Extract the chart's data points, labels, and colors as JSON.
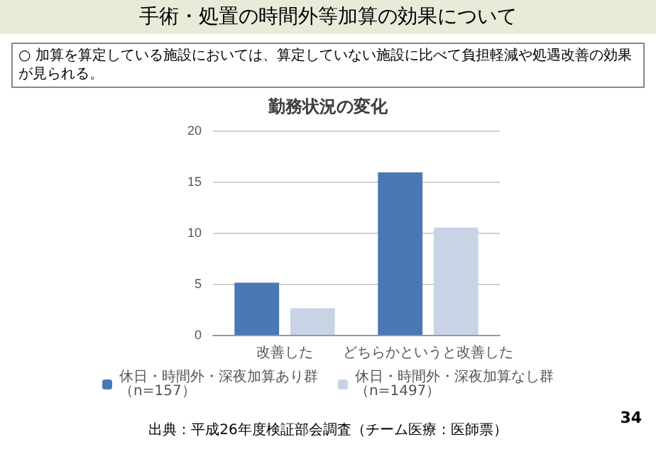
{
  "chart_data": {
    "type": "bar",
    "title": "勤務状況の変化",
    "subtitle": "○ 加算を算定している施設においては、算定していない施設に比べて負担軽減や処遇改善の効果が見られる。",
    "annotations": [
      "手術・処置の時間外等加算の効果について",
      "出典：平成26年度検証部会調査（チーム医療：医師票）",
      "34"
    ],
    "categories": [
      "改善した",
      "どちらかというと改善した"
    ],
    "series": [
      {
        "name": "休日・時間外・深夜加算あり群（n=157）",
        "color": "#4a78b4",
        "values": [
          5.1,
          15.9
        ]
      },
      {
        "name": "休日・時間外・深夜加算なし群（n=1497）",
        "color": "#c9d3e6",
        "values": [
          2.6,
          10.5
        ]
      }
    ],
    "ylim": [
      0,
      20
    ],
    "yticks": [
      0,
      5,
      10,
      15,
      20
    ],
    "grid": "y",
    "legend": "bottom"
  }
}
